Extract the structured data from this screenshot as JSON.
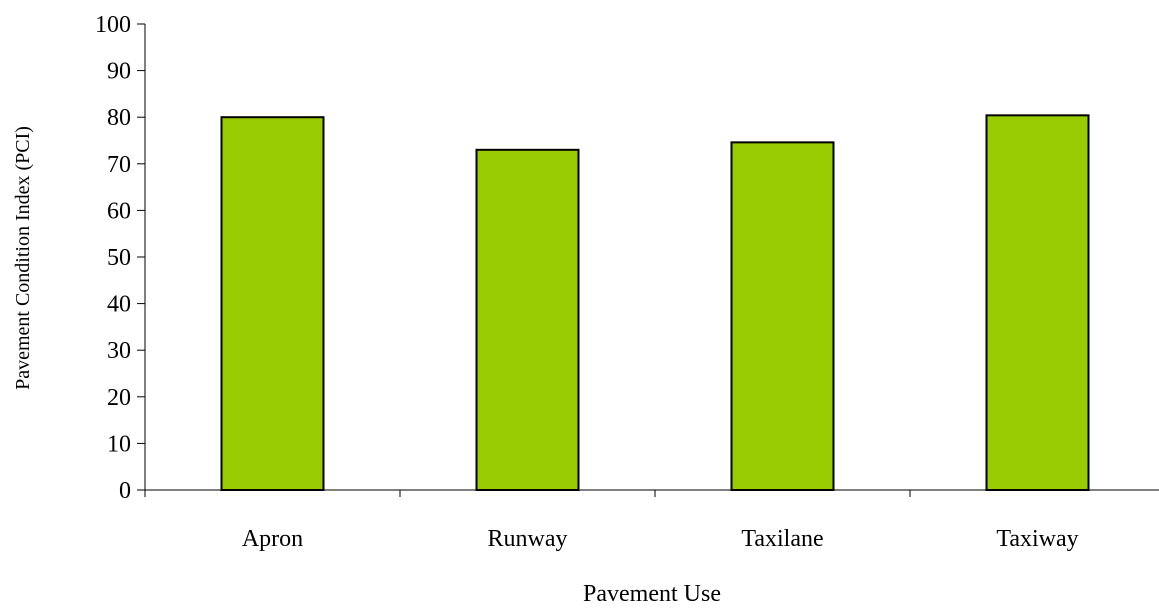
{
  "chart_data": {
    "type": "bar",
    "categories": [
      "Apron",
      "Runway",
      "Taxilane",
      "Taxiway"
    ],
    "values": [
      80,
      73,
      74.6,
      80.4
    ],
    "title": "",
    "xlabel": "Pavement Use",
    "ylabel": "Pavement Condition Index (PCI)",
    "ylim": [
      0,
      100
    ],
    "yticks": [
      0,
      10,
      20,
      30,
      40,
      50,
      60,
      70,
      80,
      90,
      100
    ],
    "grid": false,
    "legend": "none",
    "bar_color": "#99cc00",
    "bar_edge_color": "#000000"
  }
}
